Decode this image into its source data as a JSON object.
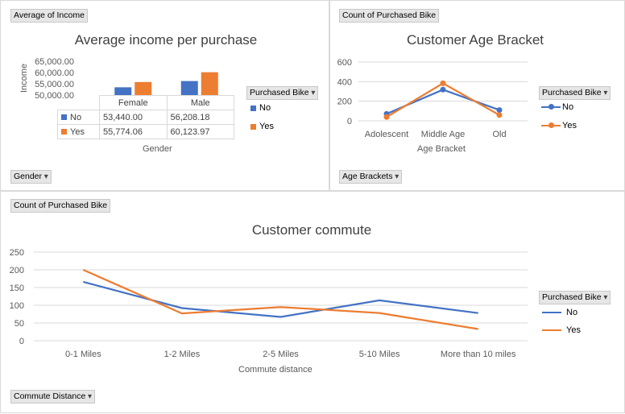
{
  "panels": {
    "income": {
      "field_value": "Average of Income",
      "field_axis": "Gender",
      "legend_title": "Purchased Bike"
    },
    "age": {
      "field_value": "Count of Purchased Bike",
      "field_axis": "Age Brackets",
      "legend_title": "Purchased Bike"
    },
    "commute": {
      "field_value": "Count of Purchased Bike",
      "field_axis": "Commute Distance",
      "legend_title": "Purchased Bike"
    }
  },
  "colors": {
    "no": "#4472c4",
    "yes": "#ed7d31"
  },
  "chart_data": [
    {
      "type": "bar",
      "title": "Average income per purchase",
      "xlabel": "Gender",
      "ylabel": "Income",
      "categories": [
        "Female",
        "Male"
      ],
      "series": [
        {
          "name": "No",
          "values": [
            53440.0,
            56208.18
          ],
          "labels": [
            "53,440.00",
            "56,208.18"
          ]
        },
        {
          "name": "Yes",
          "values": [
            55774.06,
            60123.97
          ],
          "labels": [
            "55,774.06",
            "60,123.97"
          ]
        }
      ],
      "ylim": [
        50000,
        65000
      ],
      "yticks": [
        "65,000.00",
        "60,000.00",
        "55,000.00",
        "50,000.00"
      ],
      "legend": "right"
    },
    {
      "type": "line",
      "title": "Customer Age Bracket",
      "xlabel": "Age Bracket",
      "ylabel": "",
      "categories": [
        "Adolescent",
        "Middle Age",
        "Old"
      ],
      "series": [
        {
          "name": "No",
          "values": [
            71,
            318,
            110
          ]
        },
        {
          "name": "Yes",
          "values": [
            39,
            383,
            59
          ]
        }
      ],
      "ylim": [
        0,
        600
      ],
      "yticks": [
        "600",
        "400",
        "200",
        "0"
      ],
      "legend": "right"
    },
    {
      "type": "line",
      "title": "Customer commute",
      "xlabel": "Commute distance",
      "ylabel": "",
      "categories": [
        "0-1 Miles",
        "1-2 Miles",
        "2-5 Miles",
        "5-10 Miles",
        "More than 10 miles"
      ],
      "series": [
        {
          "name": "No",
          "values": [
            166,
            92,
            67,
            114,
            78
          ]
        },
        {
          "name": "Yes",
          "values": [
            200,
            77,
            95,
            78,
            33
          ]
        }
      ],
      "ylim": [
        0,
        250
      ],
      "yticks": [
        "250",
        "200",
        "150",
        "100",
        "50",
        "0"
      ],
      "legend": "right"
    }
  ]
}
